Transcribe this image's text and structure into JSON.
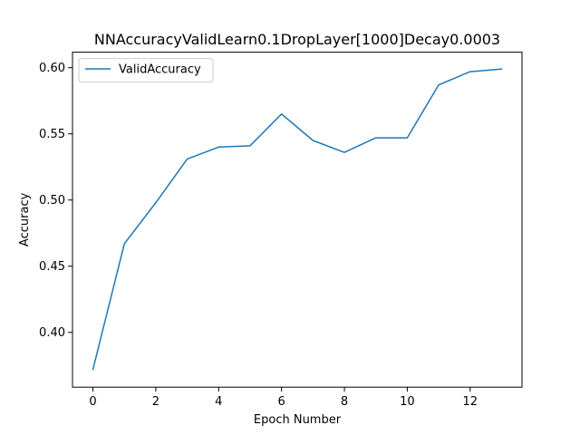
{
  "chart_data": {
    "type": "line",
    "title": "NNAccuracyValidLearn0.1DropLayer[1000]Decay0.0003",
    "xlabel": "Epoch Number",
    "ylabel": "Accuracy",
    "xlim": [
      -0.65,
      13.65
    ],
    "ylim": [
      0.3586,
      0.6117
    ],
    "xticks": [
      0,
      2,
      4,
      6,
      8,
      10,
      12
    ],
    "yticks": [
      0.4,
      0.45,
      0.5,
      0.55,
      0.6
    ],
    "xtick_labels": [
      "0",
      "2",
      "4",
      "6",
      "8",
      "10",
      "12"
    ],
    "ytick_labels": [
      "0.40",
      "0.45",
      "0.50",
      "0.55",
      "0.60"
    ],
    "grid": false,
    "legend_position": "top-left",
    "x": [
      0,
      1,
      2,
      3,
      4,
      5,
      6,
      7,
      8,
      9,
      10,
      11,
      12,
      13
    ],
    "series": [
      {
        "name": "ValidAccuracy",
        "color": "#1f77b4",
        "values": [
          0.372,
          0.467,
          0.498,
          0.531,
          0.54,
          0.541,
          0.565,
          0.545,
          0.536,
          0.547,
          0.547,
          0.587,
          0.597,
          0.599
        ]
      }
    ]
  }
}
